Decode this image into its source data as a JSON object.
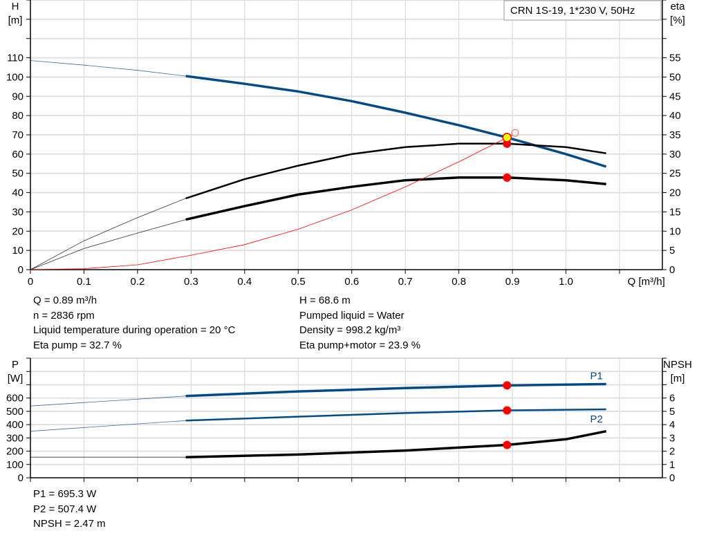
{
  "title_box": "CRN 1S-19, 1*230 V, 50Hz",
  "chart_data": [
    {
      "type": "line",
      "xlabel": "Q [m³/h]",
      "ylabel_left": [
        "H",
        "[m]"
      ],
      "ylabel_right": [
        "eta",
        "[%]"
      ],
      "xlim": [
        0,
        1.18
      ],
      "ylim_left": [
        0,
        140
      ],
      "ylim_right": [
        0,
        70
      ],
      "x_ticks": [
        "0",
        "0.1",
        "0.2",
        "0.3",
        "0.4",
        "0.5",
        "0.6",
        "0.7",
        "0.8",
        "0.9",
        "1.0"
      ],
      "y_ticks_left": [
        "0",
        "10",
        "20",
        "30",
        "40",
        "50",
        "60",
        "70",
        "80",
        "90",
        "100",
        "110"
      ],
      "y_ticks_right": [
        "0",
        "5",
        "10",
        "15",
        "20",
        "25",
        "30",
        "35",
        "40",
        "45",
        "50",
        "55"
      ],
      "grid": true,
      "operating_range_start": 0.29,
      "series": [
        {
          "key": "H",
          "axis": "left",
          "color": "#004b87",
          "x": [
            0,
            0.1,
            0.2,
            0.29,
            0.4,
            0.5,
            0.6,
            0.7,
            0.8,
            0.89,
            1.0,
            1.075
          ],
          "y": [
            108.6,
            106.2,
            103.5,
            100.5,
            96.5,
            92.5,
            87.5,
            81.5,
            75,
            68.6,
            60,
            53.5
          ]
        },
        {
          "key": "eta_pump",
          "axis": "right",
          "color": "#000000",
          "x": [
            0,
            0.1,
            0.2,
            0.29,
            0.4,
            0.5,
            0.6,
            0.7,
            0.8,
            0.89,
            1.0,
            1.075
          ],
          "y": [
            0,
            7.5,
            13.5,
            18.5,
            23.5,
            27,
            30,
            31.8,
            32.7,
            32.7,
            31.8,
            30.2
          ]
        },
        {
          "key": "eta_pump_motor",
          "axis": "right",
          "color": "#000000",
          "x": [
            0,
            0.1,
            0.2,
            0.29,
            0.4,
            0.5,
            0.6,
            0.7,
            0.8,
            0.89,
            1.0,
            1.075
          ],
          "y": [
            0,
            5.5,
            9.5,
            13,
            16.5,
            19.5,
            21.5,
            23.2,
            23.9,
            23.9,
            23.2,
            22.2
          ]
        },
        {
          "key": "system",
          "axis": "left",
          "color": "#ff0000",
          "thin": true,
          "x": [
            0,
            0.1,
            0.2,
            0.3,
            0.4,
            0.5,
            0.6,
            0.7,
            0.8,
            0.9
          ],
          "y": [
            0,
            0.5,
            2.5,
            7.5,
            13,
            21,
            31,
            43,
            56,
            70
          ]
        }
      ],
      "duty_point": {
        "Q": 0.89,
        "H": 68.6,
        "eta_pump": 32.7,
        "eta_pump_motor": 23.9
      }
    },
    {
      "type": "line",
      "ylabel_left": [
        "P",
        "[W]"
      ],
      "ylabel_right": [
        "NPSH",
        "[m]"
      ],
      "xlim": [
        0,
        1.18
      ],
      "ylim_left": [
        0,
        900
      ],
      "ylim_right": [
        0,
        9
      ],
      "y_ticks_left": [
        "0",
        "100",
        "200",
        "300",
        "400",
        "500",
        "600",
        "",
        ""
      ],
      "y_ticks_right": [
        "0",
        "1",
        "2",
        "3",
        "4",
        "5",
        "6",
        "",
        ""
      ],
      "grid": true,
      "series": [
        {
          "key": "P1",
          "name": "P1",
          "axis": "left",
          "color": "#004b87",
          "x": [
            0,
            0.29,
            0.5,
            0.7,
            0.89,
            1.075
          ],
          "y": [
            540,
            615,
            650,
            675,
            695,
            705
          ]
        },
        {
          "key": "P2",
          "name": "P2",
          "axis": "left",
          "color": "#004b87",
          "x": [
            0,
            0.29,
            0.5,
            0.7,
            0.89,
            1.075
          ],
          "y": [
            350,
            430,
            460,
            487,
            507,
            515
          ]
        },
        {
          "key": "NPSH",
          "axis": "right",
          "color": "#000000",
          "x": [
            0,
            0.29,
            0.5,
            0.7,
            0.89,
            1.0,
            1.075
          ],
          "y": [
            1.55,
            1.55,
            1.75,
            2.05,
            2.47,
            2.9,
            3.5
          ]
        }
      ],
      "duty_point": {
        "Q": 0.89,
        "P1": 695.3,
        "P2": 507.4,
        "NPSH": 2.47
      }
    }
  ],
  "info_top_left": [
    "Q = 0.89 m³/h",
    "n = 2836 rpm",
    "Liquid temperature during operation = 20 °C",
    "Eta pump = 32.7 %"
  ],
  "info_top_right": [
    "H = 68.6 m",
    "Pumped liquid = Water",
    "Density = 998.2 kg/m³",
    "Eta pump+motor = 23.9 %"
  ],
  "info_bottom": [
    "P1 = 695.3 W",
    "P2 = 507.4 W",
    "NPSH = 2.47 m"
  ]
}
